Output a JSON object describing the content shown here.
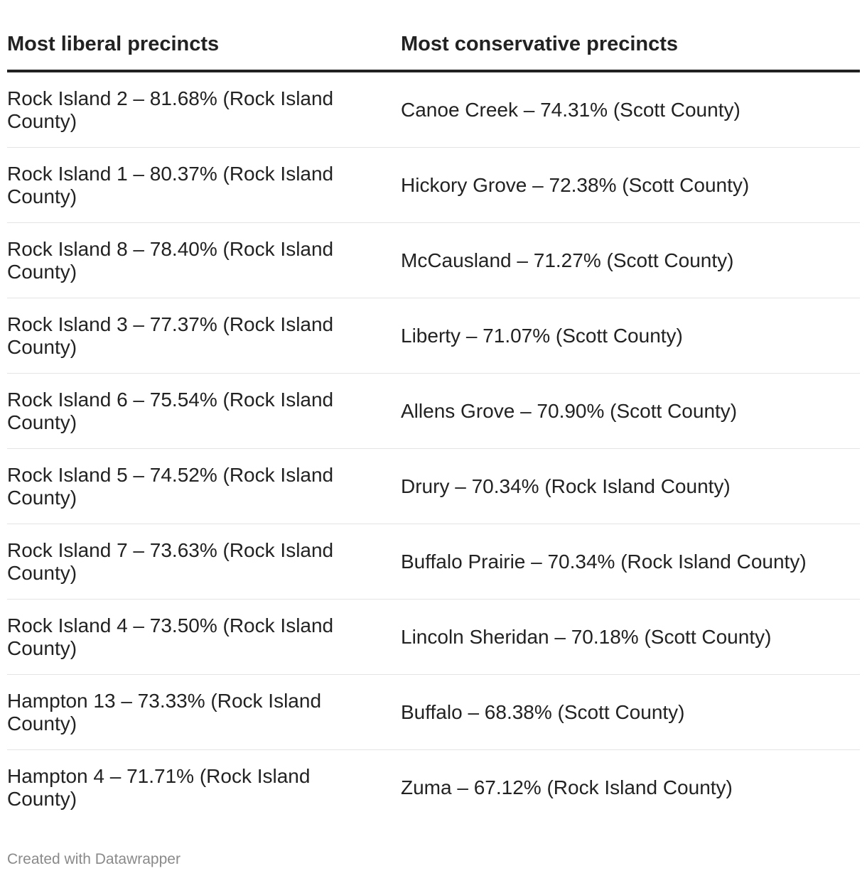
{
  "chart_data": {
    "type": "table",
    "columns": [
      "Most liberal precincts",
      "Most conservative precincts"
    ],
    "rows": [
      [
        "Rock Island 2 – 81.68% (Rock Island County)",
        "Canoe Creek – 74.31% (Scott County)"
      ],
      [
        "Rock Island 1 – 80.37% (Rock Island County)",
        "Hickory Grove – 72.38% (Scott County)"
      ],
      [
        "Rock Island 8 – 78.40% (Rock Island County)",
        "McCausland – 71.27% (Scott County)"
      ],
      [
        "Rock Island 3 – 77.37% (Rock Island County)",
        "Liberty – 71.07% (Scott County)"
      ],
      [
        "Rock Island 6 – 75.54% (Rock Island County)",
        "Allens Grove – 70.90% (Scott County)"
      ],
      [
        "Rock Island 5 – 74.52% (Rock Island County)",
        "Drury – 70.34% (Rock Island County)"
      ],
      [
        "Rock Island 7 – 73.63% (Rock Island County)",
        "Buffalo Prairie – 70.34% (Rock Island County)"
      ],
      [
        "Rock Island 4 – 73.50% (Rock Island County)",
        "Lincoln Sheridan – 70.18% (Scott County)"
      ],
      [
        "Hampton 13 – 73.33% (Rock Island County)",
        "Buffalo – 68.38% (Scott County)"
      ],
      [
        "Hampton 4 – 71.71% (Rock Island County)",
        "Zuma – 67.12% (Rock Island County)"
      ]
    ]
  },
  "footer": "Created with Datawrapper"
}
